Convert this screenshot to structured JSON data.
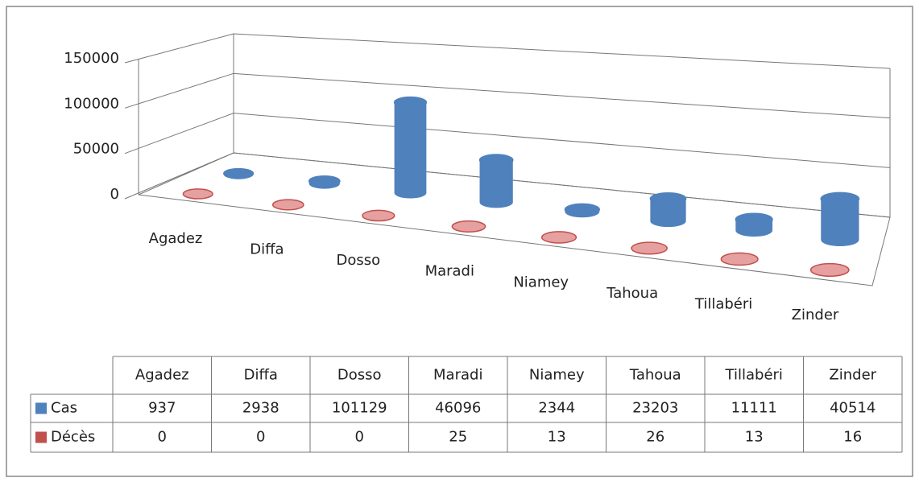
{
  "chart_data": {
    "type": "bar3d",
    "categories": [
      "Agadez",
      "Diffa",
      "Dosso",
      "Maradi",
      "Niamey",
      "Tahoua",
      "Tillabéri",
      "Zinder"
    ],
    "series": [
      {
        "name": "Cas",
        "color": "#4f81bd",
        "values": [
          937,
          2938,
          101129,
          46096,
          2344,
          23203,
          11111,
          40514
        ]
      },
      {
        "name": "Décès",
        "color": "#c0504d",
        "values": [
          0,
          0,
          0,
          25,
          13,
          26,
          13,
          16
        ]
      }
    ],
    "ylim": [
      0,
      150000
    ],
    "yticks": [
      0,
      50000,
      100000,
      150000
    ],
    "grid": true
  }
}
